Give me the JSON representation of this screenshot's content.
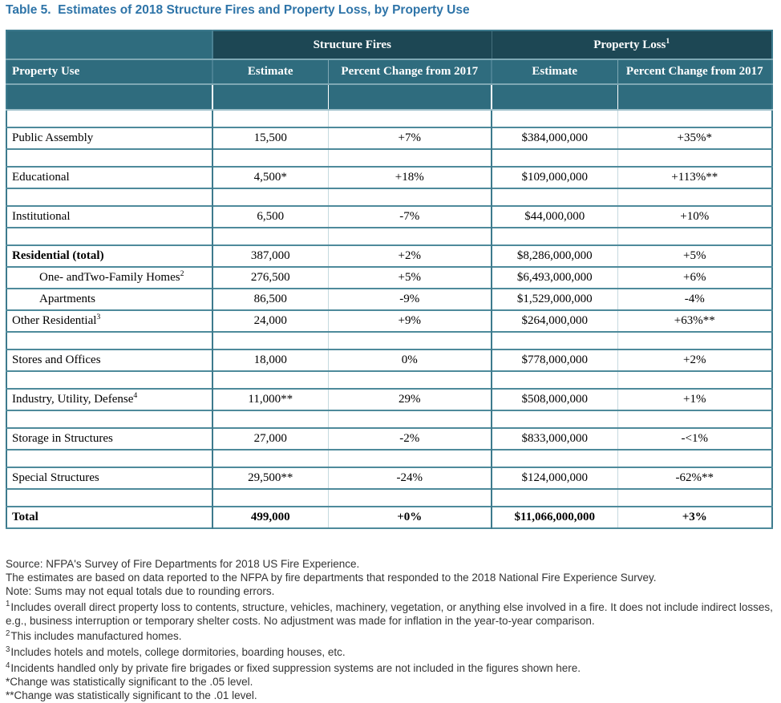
{
  "title": "Table 5.  Estimates of 2018 Structure Fires and Property Loss, by Property Use",
  "colors": {
    "title_blue": "#2E74A8",
    "header_dark_teal": "#1D4754",
    "header_medium_teal": "#2F6C7E",
    "border_strong_teal": "#3D7A8D",
    "border_row_teal": "#4E8A9B",
    "border_pale": "#C5D9DF",
    "header_text": "#FFFFFF",
    "body_text": "#000000",
    "footnote_text": "#333333"
  },
  "table": {
    "group_headers": {
      "structure_fires": {
        "label": "Structure Fires"
      },
      "property_loss": {
        "label": "Property Loss",
        "sup": "1"
      }
    },
    "column_headers": [
      "Property Use",
      "Estimate",
      "Percent Change from 2017",
      "Estimate",
      "Percent Change from 2017"
    ],
    "rows": [
      {
        "type": "spacer"
      },
      {
        "type": "data",
        "label": "Public Assembly",
        "cells": [
          "15,500",
          "+7%",
          "$384,000,000",
          "+35%*"
        ]
      },
      {
        "type": "spacer"
      },
      {
        "type": "data",
        "label": "Educational",
        "cells": [
          "4,500*",
          "+18%",
          "$109,000,000",
          "+113%**"
        ]
      },
      {
        "type": "spacer"
      },
      {
        "type": "data",
        "label": "Institutional",
        "cells": [
          "6,500",
          "-7%",
          "$44,000,000",
          "+10%"
        ]
      },
      {
        "type": "spacer"
      },
      {
        "type": "data",
        "label": "Residential (total)",
        "bold_label": true,
        "cells": [
          "387,000",
          "+2%",
          "$8,286,000,000",
          "+5%"
        ]
      },
      {
        "type": "data",
        "label": "One- andTwo-Family Homes",
        "sup": "2",
        "indent": true,
        "cells": [
          "276,500",
          "+5%",
          "$6,493,000,000",
          "+6%"
        ]
      },
      {
        "type": "data",
        "label": "Apartments",
        "indent": true,
        "cells": [
          "86,500",
          "-9%",
          "$1,529,000,000",
          "-4%"
        ]
      },
      {
        "type": "data",
        "label": "Other Residential",
        "sup": "3",
        "cells": [
          "24,000",
          "+9%",
          "$264,000,000",
          "+63%**"
        ]
      },
      {
        "type": "spacer"
      },
      {
        "type": "data",
        "label": "Stores and Offices",
        "cells": [
          "18,000",
          "0%",
          "$778,000,000",
          "+2%"
        ]
      },
      {
        "type": "spacer"
      },
      {
        "type": "data",
        "label": "Industry, Utility, Defense",
        "sup": "4",
        "cells": [
          "11,000**",
          "29%",
          "$508,000,000",
          "+1%"
        ]
      },
      {
        "type": "spacer"
      },
      {
        "type": "data",
        "label": "Storage in Structures",
        "cells": [
          "27,000",
          "-2%",
          "$833,000,000",
          "-<1%"
        ]
      },
      {
        "type": "spacer"
      },
      {
        "type": "data",
        "label": "Special Structures",
        "cells": [
          "29,500**",
          "-24%",
          "$124,000,000",
          "-62%**"
        ]
      },
      {
        "type": "spacer"
      },
      {
        "type": "data",
        "label": "Total",
        "bold_row": true,
        "cells": [
          "499,000",
          "+0%",
          "$11,066,000,000",
          "+3%"
        ]
      }
    ]
  },
  "footnotes": [
    {
      "text": "Source: NFPA's Survey of Fire Departments for 2018 US Fire Experience."
    },
    {
      "text": "The estimates are based on data reported to the NFPA by fire departments that responded to the 2018 National Fire Experience Survey."
    },
    {
      "text": "Note: Sums may not equal totals due to rounding errors."
    },
    {
      "sup": "1",
      "text": "Includes overall direct property loss to contents, structure, vehicles, machinery, vegetation, or anything else involved in a fire.  It does not include indirect losses, e.g., business interruption or temporary shelter costs.  No adjustment was made for inflation in the year-to-year comparison."
    },
    {
      "sup": "2",
      "text": "This includes manufactured homes."
    },
    {
      "sup": "3",
      "text": "Includes hotels and motels, college dormitories, boarding houses, etc."
    },
    {
      "sup": "4",
      "text": "Incidents handled only by private fire brigades or fixed suppression systems are not included in the figures shown here."
    },
    {
      "text": "*Change was statistically significant to the .05 level."
    },
    {
      "text": "**Change was statistically significant to the .01 level."
    }
  ]
}
